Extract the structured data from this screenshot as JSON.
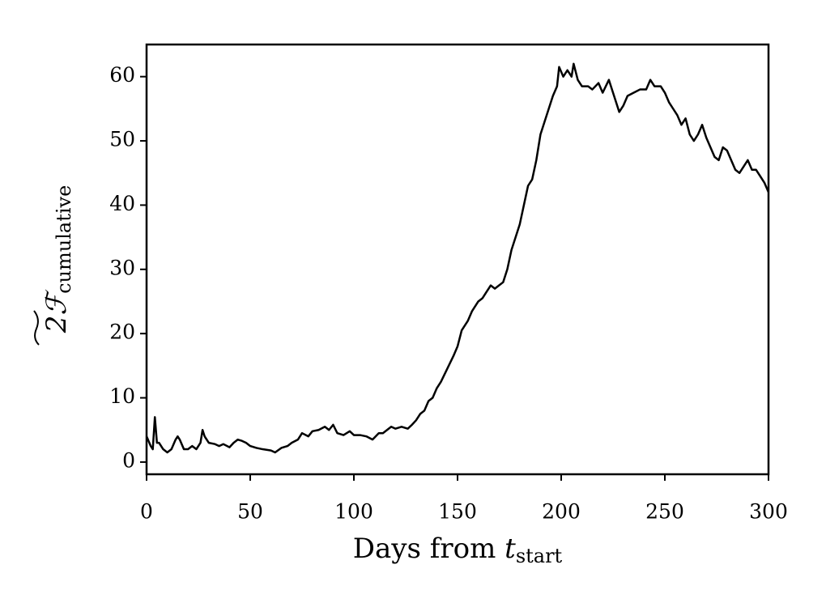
{
  "chart_data": {
    "type": "line",
    "xlabel": {
      "text": "Days from ",
      "var": "t",
      "sub": "start"
    },
    "ylabel": {
      "text": "2ℱ",
      "sub": "cumulative"
    },
    "xlim": [
      0,
      300
    ],
    "ylim": [
      -1.9,
      65
    ],
    "xticks": [
      0,
      50,
      100,
      150,
      200,
      250,
      300
    ],
    "yticks": [
      0,
      10,
      20,
      30,
      40,
      50,
      60
    ],
    "grid": false,
    "x": [
      0,
      2,
      3,
      4,
      5,
      6,
      8,
      10,
      12,
      14,
      15,
      16,
      18,
      20,
      22,
      24,
      26,
      27,
      28,
      30,
      33,
      35,
      37,
      40,
      42,
      44,
      46,
      48,
      50,
      53,
      56,
      60,
      62,
      65,
      68,
      70,
      73,
      75,
      78,
      80,
      83,
      86,
      88,
      90,
      92,
      95,
      98,
      100,
      103,
      106,
      109,
      112,
      114,
      116,
      118,
      120,
      123,
      126,
      128,
      130,
      132,
      134,
      136,
      138,
      140,
      142,
      145,
      148,
      150,
      152,
      155,
      157,
      160,
      162,
      164,
      166,
      168,
      170,
      172,
      174,
      176,
      178,
      180,
      182,
      184,
      186,
      188,
      190,
      192,
      194,
      196,
      198,
      199,
      201,
      203,
      205,
      206,
      208,
      210,
      213,
      215,
      218,
      220,
      223,
      226,
      228,
      230,
      232,
      235,
      238,
      241,
      243,
      245,
      248,
      250,
      252,
      254,
      256,
      258,
      260,
      262,
      264,
      266,
      268,
      270,
      272,
      274,
      276,
      278,
      280,
      282,
      284,
      286,
      288,
      290,
      292,
      294,
      296,
      298,
      300
    ],
    "series": [
      {
        "color": "#000000",
        "values": [
          4,
          2.5,
          2,
          7,
          3,
          3,
          2,
          1.5,
          2,
          3.5,
          4,
          3.5,
          2,
          2,
          2.5,
          2,
          3,
          5,
          4,
          3,
          2.8,
          2.5,
          2.8,
          2.3,
          3,
          3.5,
          3.3,
          3,
          2.5,
          2.2,
          2,
          1.8,
          1.5,
          2.2,
          2.5,
          3,
          3.5,
          4.5,
          4,
          4.8,
          5,
          5.5,
          5,
          5.8,
          4.5,
          4.2,
          4.8,
          4.2,
          4.2,
          4,
          3.5,
          4.5,
          4.5,
          5,
          5.5,
          5.2,
          5.5,
          5.2,
          5.8,
          6.5,
          7.5,
          8,
          9.5,
          10,
          11.5,
          12.5,
          14.5,
          16.5,
          18,
          20.5,
          22,
          23.5,
          25,
          25.5,
          26.5,
          27.5,
          27,
          27.5,
          28,
          30,
          33,
          35,
          37,
          40,
          43,
          44,
          47,
          51,
          53,
          55,
          57,
          58.5,
          61.5,
          60,
          61,
          60,
          62,
          59.5,
          58.5,
          58.5,
          58,
          59,
          57.5,
          59.5,
          56.5,
          54.5,
          55.5,
          57,
          57.5,
          58,
          58,
          59.5,
          58.5,
          58.5,
          57.5,
          56,
          55,
          54,
          52.5,
          53.5,
          51,
          50,
          51,
          52.5,
          50.5,
          49,
          47.5,
          47,
          49,
          48.5,
          47,
          45.5,
          45,
          46,
          47,
          45.5,
          45.5,
          44.5,
          43.5,
          42
        ]
      }
    ]
  }
}
